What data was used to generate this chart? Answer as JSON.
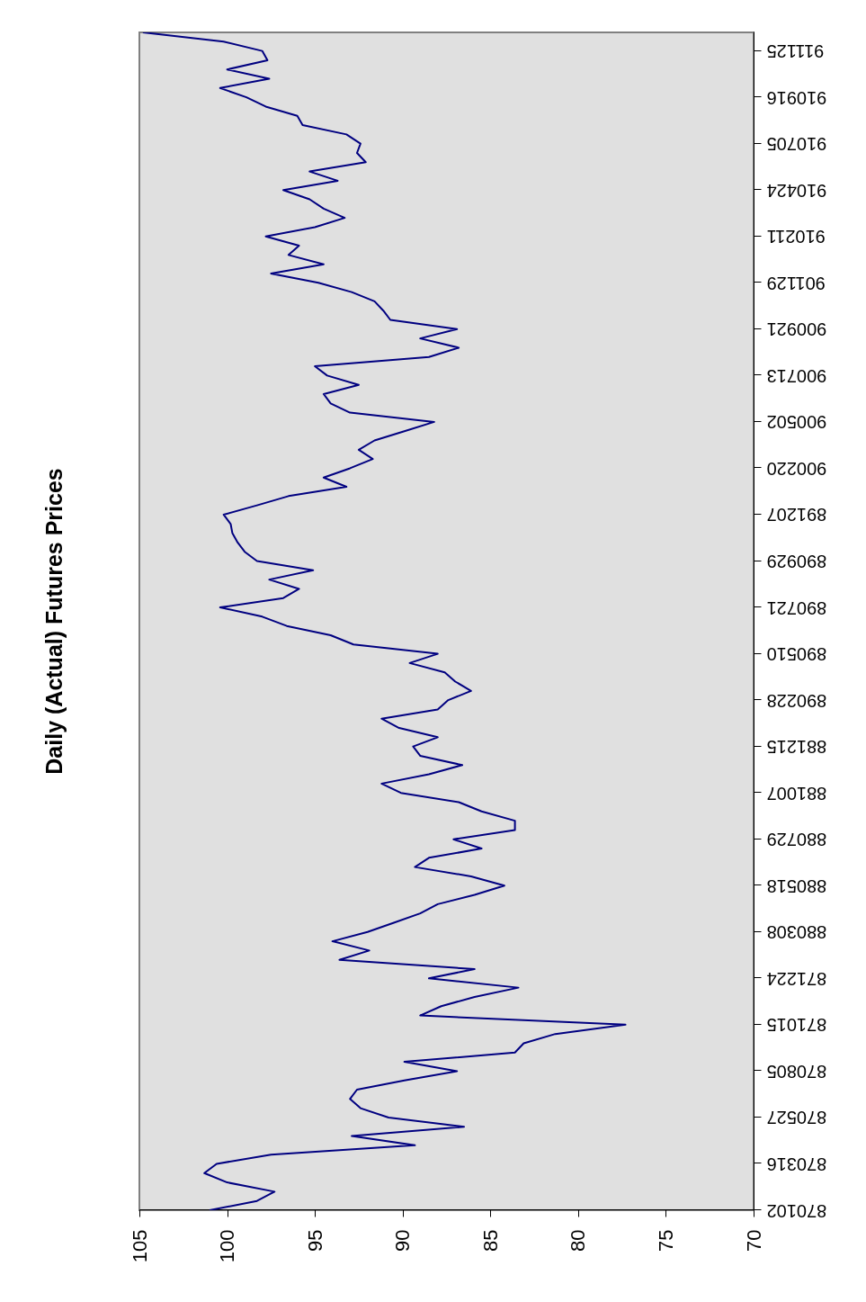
{
  "chart_data": {
    "type": "line",
    "title": "Daily (Actual) Futures Prices",
    "orientation": "horizontal",
    "categories": [
      null,
      null,
      "911125",
      null,
      null,
      null,
      null,
      "910916",
      null,
      null,
      null,
      null,
      "910705",
      null,
      null,
      null,
      null,
      "910424",
      null,
      null,
      null,
      null,
      "910211",
      null,
      null,
      null,
      null,
      "901129",
      null,
      null,
      null,
      null,
      "900921",
      null,
      null,
      null,
      null,
      "900713",
      null,
      null,
      null,
      null,
      "900502",
      null,
      null,
      null,
      null,
      "900220",
      null,
      null,
      null,
      null,
      "891207",
      null,
      null,
      null,
      null,
      "890929",
      null,
      null,
      null,
      null,
      "890721",
      null,
      null,
      null,
      null,
      "890510",
      null,
      null,
      null,
      null,
      "890228",
      null,
      null,
      null,
      null,
      "881215",
      null,
      null,
      null,
      null,
      "881007",
      null,
      null,
      null,
      null,
      "880729",
      null,
      null,
      null,
      null,
      "880518",
      null,
      null,
      null,
      null,
      "880308",
      null,
      null,
      null,
      null,
      "871224",
      null,
      null,
      null,
      null,
      "871015",
      null,
      null,
      null,
      null,
      "870805",
      null,
      null,
      null,
      null,
      "870527",
      null,
      null,
      null,
      null,
      "870316",
      null,
      null,
      null,
      null,
      "870102"
    ],
    "series": [
      {
        "color": "#000080",
        "values": [
          104.8,
          100.2,
          98.0,
          97.7,
          100.0,
          97.6,
          100.4,
          98.9,
          97.8,
          96.0,
          95.7,
          93.2,
          92.4,
          92.6,
          92.1,
          95.3,
          93.7,
          96.8,
          95.3,
          94.5,
          93.3,
          95.0,
          97.8,
          95.9,
          96.5,
          94.5,
          97.5,
          94.8,
          92.9,
          91.6,
          91.1,
          90.7,
          86.9,
          89.0,
          86.8,
          88.5,
          95.0,
          94.3,
          92.5,
          94.5,
          94.1,
          93.0,
          88.2,
          89.9,
          91.6,
          92.5,
          91.7,
          93.0,
          94.5,
          93.2,
          96.5,
          98.3,
          100.2,
          99.8,
          99.7,
          99.4,
          99.0,
          98.3,
          95.1,
          97.6,
          95.9,
          96.8,
          100.4,
          98.0,
          96.6,
          94.1,
          92.8,
          88.0,
          89.6,
          87.6,
          87.0,
          86.1,
          87.4,
          88.0,
          91.2,
          90.2,
          88.0,
          89.4,
          89.0,
          86.6,
          88.5,
          91.2,
          90.1,
          86.8,
          85.5,
          83.6,
          83.6,
          87.1,
          85.5,
          88.5,
          89.3,
          86.1,
          84.2,
          85.9,
          88.0,
          89.0,
          90.5,
          92.0,
          94.0,
          91.9,
          93.6,
          85.9,
          88.5,
          83.4,
          85.9,
          87.8,
          89.0,
          77.3,
          81.3,
          83.1,
          83.6,
          89.9,
          86.9,
          89.9,
          92.6,
          93.0,
          92.4,
          90.8,
          86.5,
          92.9,
          89.3,
          97.5,
          100.6,
          101.3,
          100.0,
          97.3,
          98.3,
          101.0
        ]
      }
    ],
    "xlim": [
      105,
      70
    ],
    "xticks": [
      105,
      100,
      95,
      90,
      85,
      80,
      75,
      70
    ]
  }
}
